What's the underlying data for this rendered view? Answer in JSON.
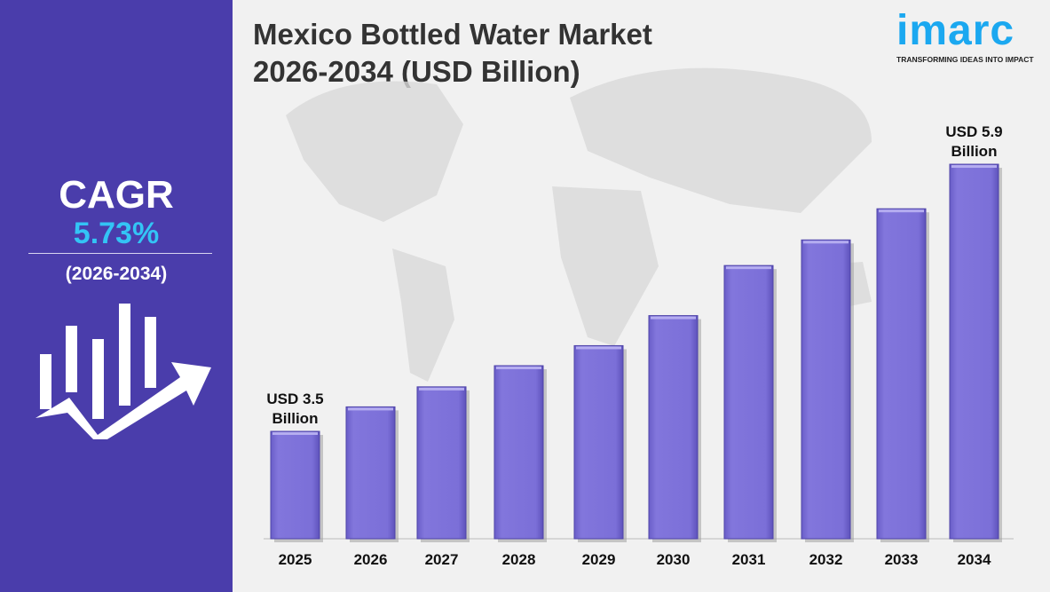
{
  "sidebar": {
    "cagr_label": "CAGR",
    "cagr_value": "5.73%",
    "cagr_period": "(2026-2034)",
    "icon": "growth-chart-arrow-icon",
    "background_color": "#4a3dab",
    "accent_color": "#33c4f5"
  },
  "logo": {
    "word": "imarc",
    "tagline": "TRANSFORMING IDEAS INTO IMPACT",
    "color": "#1ba8f0"
  },
  "chart_data": {
    "type": "bar",
    "title_lines": [
      "Mexico Bottled Water Market",
      "2026-2034 (USD Billion)"
    ],
    "categories": [
      "2025",
      "2026",
      "2027",
      "2028",
      "2029",
      "2030",
      "2031",
      "2032",
      "2033",
      "2034"
    ],
    "values": [
      3.5,
      3.72,
      3.9,
      4.09,
      4.27,
      4.54,
      4.99,
      5.22,
      5.5,
      5.9
    ],
    "annotations": [
      {
        "category": "2025",
        "lines": [
          "USD 3.5",
          "Billion"
        ]
      },
      {
        "category": "2034",
        "lines": [
          "USD 5.9",
          "Billion"
        ]
      }
    ],
    "bar_color": "#7b6fd8",
    "grid": false,
    "legend": "none"
  }
}
